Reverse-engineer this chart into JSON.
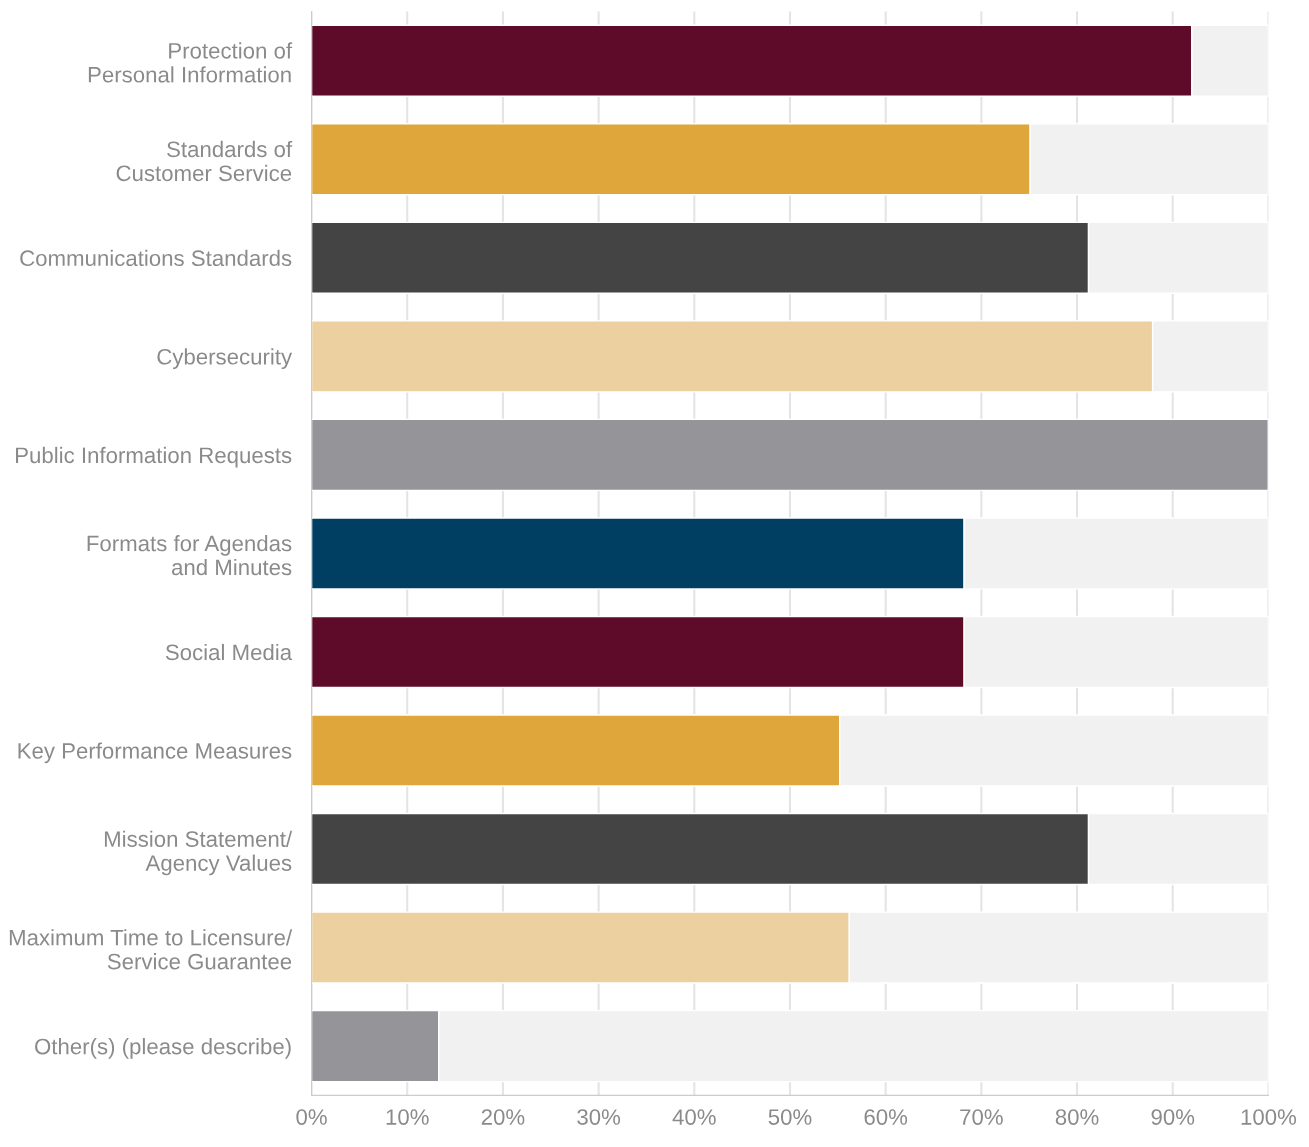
{
  "chart_data": {
    "type": "bar",
    "orientation": "horizontal",
    "stacked": true,
    "categories": [
      "Protection of\nPersonal Information",
      "Standards of\nCustomer Service",
      "Communications Standards",
      "Cybersecurity",
      "Public Information Requests",
      "Formats for Agendas\nand Minutes",
      "Social Media",
      "Key Performance Measures",
      "Mission Statement/\nAgency Values",
      "Maximum Time to Licensure/\nService Guarantee",
      "Other(s) (please describe)"
    ],
    "series": [
      {
        "colors": [
          "#5e0b2a",
          "#dfa63b",
          "#444444",
          "#ecd0a0",
          "#959499",
          "#003f62",
          "#5e0b2a",
          "#dfa63b",
          "#444444",
          "#ecd0a0",
          "#959499"
        ],
        "values": [
          92.0,
          75.1,
          81.2,
          87.9,
          100,
          68.2,
          68.2,
          55.2,
          81.2,
          56.2,
          13.3
        ]
      },
      {
        "color": "#f1f1f1",
        "values": [
          8.0,
          24.9,
          18.8,
          12.1,
          0,
          31.8,
          31.8,
          44.8,
          18.8,
          43.8,
          86.7
        ]
      }
    ],
    "xlim": [
      0,
      100
    ],
    "xticks": [
      {
        "value": 0,
        "label": "0%"
      },
      {
        "value": 10,
        "label": "10%"
      },
      {
        "value": 20,
        "label": "20%"
      },
      {
        "value": 30,
        "label": "30%"
      },
      {
        "value": 40,
        "label": "40%"
      },
      {
        "value": 50,
        "label": "50%"
      },
      {
        "value": 60,
        "label": "60%"
      },
      {
        "value": 70,
        "label": "70%"
      },
      {
        "value": 80,
        "label": "80%"
      },
      {
        "value": 90,
        "label": "90%"
      },
      {
        "value": 100,
        "label": "100%"
      }
    ],
    "grid": "x",
    "legend": false
  }
}
